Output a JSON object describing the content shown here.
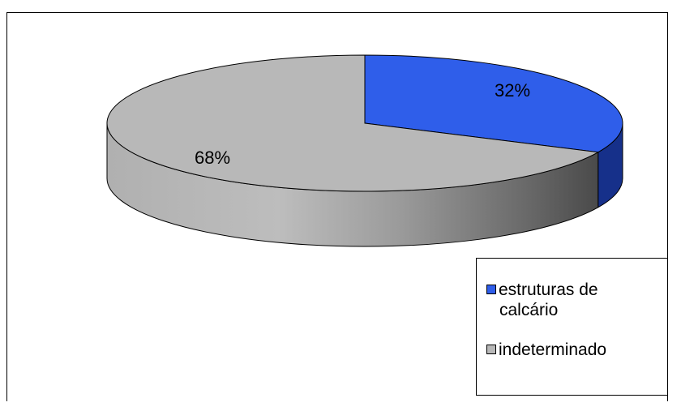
{
  "chart_data": {
    "type": "pie",
    "style": "3d",
    "title": "",
    "slices": [
      {
        "label": "estruturas de calcário",
        "value": 32,
        "data_label": "32%",
        "color": "#2f5eea",
        "side_color": "#16308a"
      },
      {
        "label": "indeterminado",
        "value": 68,
        "data_label": "68%",
        "color": "#b8b8b8",
        "side_color": "#8a8a8a"
      }
    ],
    "legend": {
      "position": "bottom-right",
      "entries": [
        {
          "line1": "estruturas de",
          "line2": "calcário",
          "color": "#2f5eea"
        },
        {
          "line1": "indeterminado",
          "line2": "",
          "color": "#b8b8b8"
        }
      ]
    }
  }
}
